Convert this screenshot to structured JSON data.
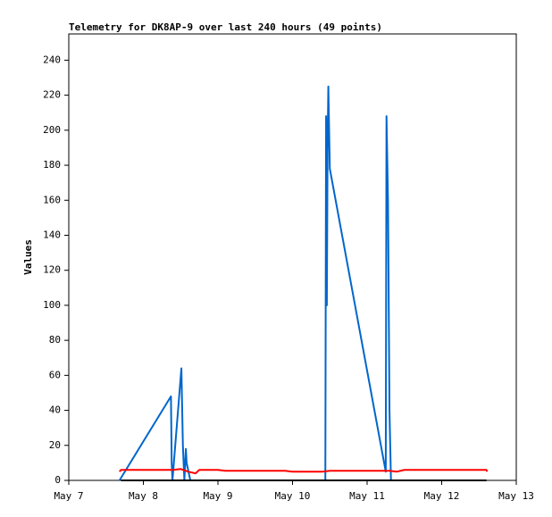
{
  "chart_data": {
    "type": "line",
    "title": "Telemetry for DK8AP-9 over last 240 hours (49 points)",
    "y_label": "Values",
    "xlim": [
      7,
      13
    ],
    "xticks": [
      {
        "value": 7,
        "label": "May 7"
      },
      {
        "value": 8,
        "label": "May 8"
      },
      {
        "value": 9,
        "label": "May 9"
      },
      {
        "value": 10,
        "label": "May 10"
      },
      {
        "value": 11,
        "label": "May 11"
      },
      {
        "value": 12,
        "label": "May 12"
      },
      {
        "value": 13,
        "label": "May 13"
      }
    ],
    "ylim": [
      0,
      255
    ],
    "yticks": [
      0,
      20,
      40,
      60,
      80,
      100,
      120,
      140,
      160,
      180,
      200,
      220,
      240
    ],
    "series": [
      {
        "color": "#0066cc",
        "x": [
          7.68,
          8.37,
          8.38,
          8.39,
          8.51,
          8.53,
          8.55,
          8.57,
          8.58,
          8.63,
          10.44,
          10.45,
          10.46,
          10.47,
          10.48,
          10.5,
          11.25,
          11.26,
          11.28,
          11.3,
          11.32,
          12.6
        ],
        "values": [
          0,
          48,
          10,
          0,
          64,
          20,
          0,
          18,
          10,
          0,
          0,
          208,
          100,
          190,
          225,
          178,
          5,
          208,
          160,
          40,
          0,
          0
        ]
      },
      {
        "color": "#ff0000",
        "x": [
          7.68,
          7.7,
          8.4,
          8.5,
          8.6,
          8.7,
          8.75,
          9.0,
          9.1,
          9.9,
          10.0,
          10.4,
          10.5,
          11.3,
          11.4,
          11.5,
          12.6,
          12.61
        ],
        "values": [
          5,
          6,
          6,
          6.5,
          5,
          4,
          6,
          6,
          5.5,
          5.5,
          5,
          5,
          5.5,
          5.5,
          5,
          6,
          6,
          5
        ]
      },
      {
        "color": "#000000",
        "x": [
          7.7,
          12.6
        ],
        "values": [
          0,
          0
        ]
      }
    ]
  }
}
